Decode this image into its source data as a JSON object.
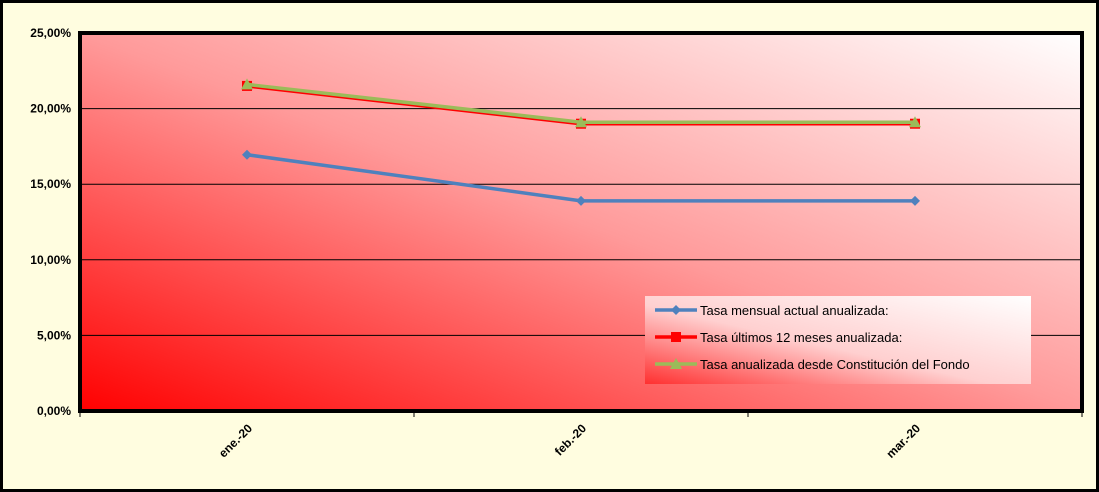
{
  "chart_data": {
    "type": "line",
    "categories": [
      "ene.-20",
      "feb.-20",
      "mar.-20"
    ],
    "series": [
      {
        "name": "Tasa mensual actual anualizada:",
        "values": [
          16.95,
          13.9,
          13.9
        ],
        "color": "#4f81bd",
        "marker": "diamond"
      },
      {
        "name": "Tasa últimos 12 meses anualizada:",
        "values": [
          21.5,
          19.0,
          19.0
        ],
        "color": "#ff0000",
        "marker": "square"
      },
      {
        "name": "Tasa anualizada desde Constitución del Fondo",
        "values": [
          21.6,
          19.1,
          19.1
        ],
        "color": "#9bbb59",
        "marker": "triangle"
      }
    ],
    "y_ticks": [
      "0,00%",
      "5,00%",
      "10,00%",
      "15,00%",
      "20,00%",
      "25,00%"
    ],
    "ylim": [
      0,
      25
    ],
    "y_tick_step": 5,
    "grid": true,
    "legend_position": "right",
    "plot_background": "red-gradient",
    "chart_background": "#fffde0"
  }
}
